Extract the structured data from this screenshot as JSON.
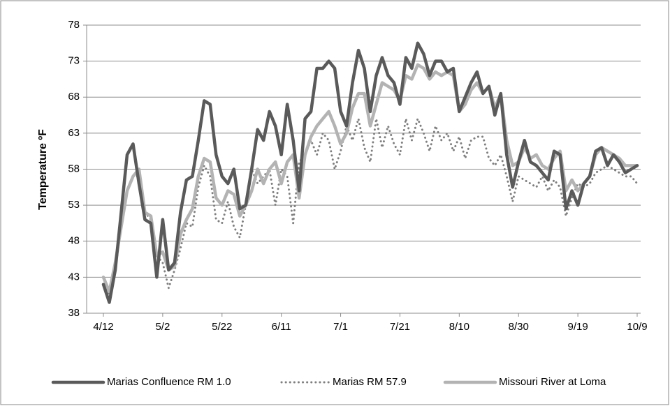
{
  "chart_data": {
    "type": "line",
    "y_label": "Temperature ºF",
    "categories": [
      "4/12",
      null,
      null,
      null,
      null,
      null,
      null,
      null,
      null,
      null,
      "5/2",
      null,
      null,
      null,
      null,
      null,
      null,
      null,
      null,
      null,
      "5/22",
      null,
      null,
      null,
      null,
      null,
      null,
      null,
      null,
      null,
      "6/11",
      null,
      null,
      null,
      null,
      null,
      null,
      null,
      null,
      null,
      "7/1",
      null,
      null,
      null,
      null,
      null,
      null,
      null,
      null,
      null,
      "7/21",
      null,
      null,
      null,
      null,
      null,
      null,
      null,
      null,
      null,
      "8/10",
      null,
      null,
      null,
      null,
      null,
      null,
      null,
      null,
      null,
      "8/30",
      null,
      null,
      null,
      null,
      null,
      null,
      null,
      null,
      null,
      "9/19",
      null,
      null,
      null,
      null,
      null,
      null,
      null,
      null,
      null,
      "10/9"
    ],
    "series": [
      {
        "name": "Marias Confluence RM 1.0",
        "color": "#5a5a5a",
        "style": "solid",
        "values": [
          42,
          39.5,
          44,
          52,
          60,
          61.5,
          56,
          51,
          50.5,
          43,
          51,
          44,
          45,
          52,
          56.5,
          57,
          62,
          67.5,
          67,
          60,
          57,
          56,
          58,
          52.5,
          53,
          58,
          63.5,
          62,
          66,
          64,
          60,
          67,
          62,
          55,
          65,
          66,
          72,
          72,
          73,
          72,
          66,
          64,
          70,
          74.5,
          72,
          66,
          71,
          73.5,
          71,
          70,
          67,
          73.5,
          72,
          75.5,
          74,
          71,
          73,
          73,
          71.5,
          72,
          66,
          68,
          70,
          71.5,
          68.5,
          69.5,
          65.5,
          68.5,
          60,
          55.5,
          59,
          62,
          59,
          58.5,
          57.5,
          56.5,
          60.5,
          60,
          52.5,
          55,
          53,
          56,
          57,
          60.5,
          61,
          58.5,
          60,
          59,
          57.5,
          58,
          58.5
        ]
      },
      {
        "name": "Marias RM 57.9",
        "color": "#7f7f7f",
        "style": "dotted",
        "values": [
          43,
          40.5,
          44,
          50,
          55,
          57,
          57,
          52,
          51,
          46,
          45,
          41.5,
          44,
          47,
          50.5,
          50,
          55.5,
          58.5,
          57,
          51,
          50.5,
          53.5,
          50,
          48.5,
          53,
          58,
          56,
          57,
          58,
          53,
          58,
          57,
          50.5,
          59,
          60,
          62,
          60,
          63,
          62,
          58,
          60.5,
          64,
          62,
          65,
          61,
          59,
          65,
          61,
          64,
          61.5,
          60,
          65,
          62,
          65,
          63,
          60.5,
          64,
          62,
          63,
          60.5,
          62.5,
          59.5,
          62,
          62.5,
          62.5,
          59.5,
          58.5,
          60,
          57,
          53.5,
          57,
          56.5,
          56,
          55.5,
          57,
          55,
          56.5,
          55.5,
          51.5,
          54,
          56,
          55.5,
          56,
          57.5,
          58,
          58.5,
          58,
          57.5,
          57,
          57,
          56
        ]
      },
      {
        "name": "Missouri River at Loma",
        "color": "#b3b3b3",
        "style": "solid",
        "values": [
          43,
          41,
          45,
          50,
          55,
          57,
          58,
          52,
          51.5,
          46,
          46.5,
          44,
          44.5,
          49,
          51,
          52.5,
          57,
          59.5,
          59,
          54,
          53,
          55,
          54.5,
          51.5,
          53,
          55,
          58,
          56,
          58,
          59,
          56,
          59,
          60,
          54,
          60,
          62.5,
          64,
          65,
          66,
          64,
          61.5,
          63,
          66.5,
          68.5,
          68.5,
          64,
          67,
          70,
          69.5,
          69,
          67.5,
          71,
          70.5,
          72.5,
          72,
          70.5,
          71.5,
          71,
          71.5,
          71,
          66,
          67,
          69,
          70,
          68.5,
          69.5,
          66.5,
          68.5,
          62,
          58.5,
          59,
          61,
          59.5,
          60,
          58.5,
          58,
          59.5,
          60.5,
          55,
          56.5,
          55,
          56,
          57,
          60,
          61,
          60.5,
          60,
          59.5,
          58.5,
          58.5,
          58.5
        ]
      }
    ],
    "ylim": [
      38,
      78
    ],
    "yticks": [
      38,
      43,
      48,
      53,
      58,
      63,
      68,
      73,
      78
    ],
    "grid": true,
    "legend": "bottom"
  }
}
